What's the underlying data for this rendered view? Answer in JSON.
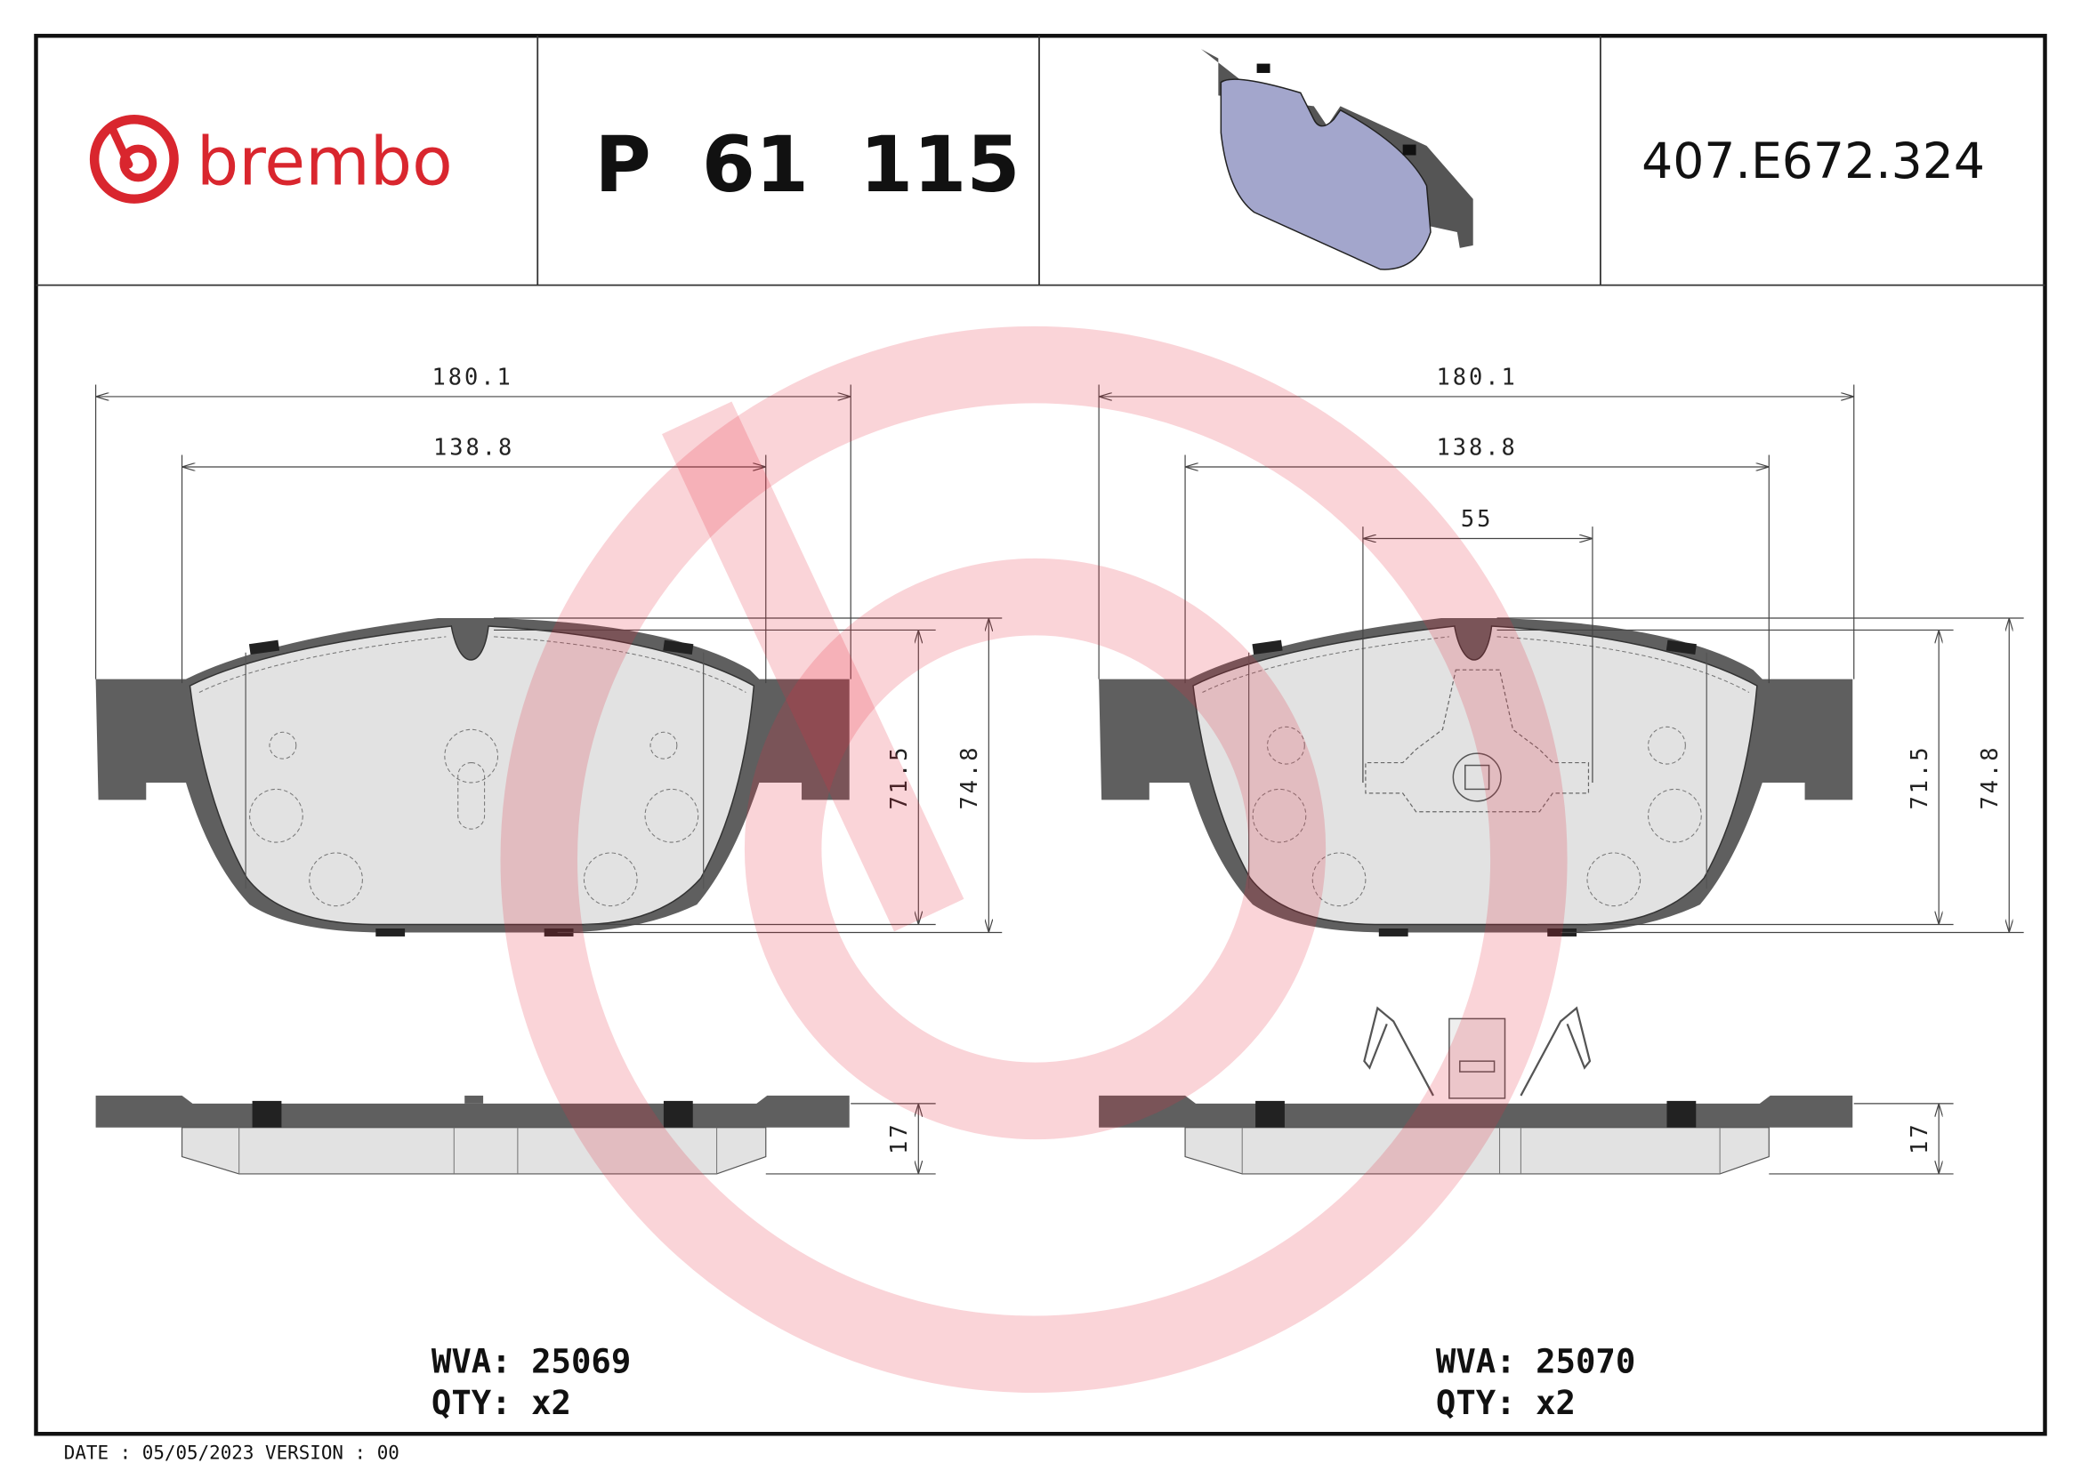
{
  "header": {
    "brand": "brembo",
    "part_number": "P 61 115",
    "reference": "407.E672.324",
    "brand_color": "#d9262e"
  },
  "left_pad": {
    "width_overall": "180.1",
    "width_friction": "138.8",
    "height_friction": "71.5",
    "height_overall": "74.8",
    "thickness": "17",
    "wva_label": "WVA:",
    "wva_value": "25069",
    "qty_label": "QTY:",
    "qty_value": "x2"
  },
  "right_pad": {
    "width_overall": "180.1",
    "width_friction": "138.8",
    "sensor_width": "55",
    "height_friction": "71.5",
    "height_overall": "74.8",
    "thickness": "17",
    "wva_label": "WVA:",
    "wva_value": "25070",
    "qty_label": "QTY:",
    "qty_value": "x2"
  },
  "footer": {
    "text": "DATE : 05/05/2023 VERSION : 00"
  },
  "colors": {
    "backplate": "#5f5f5f",
    "friction": "#e0e0e0",
    "render_pad": "#a3a6cc",
    "watermark": "#e8283c"
  }
}
